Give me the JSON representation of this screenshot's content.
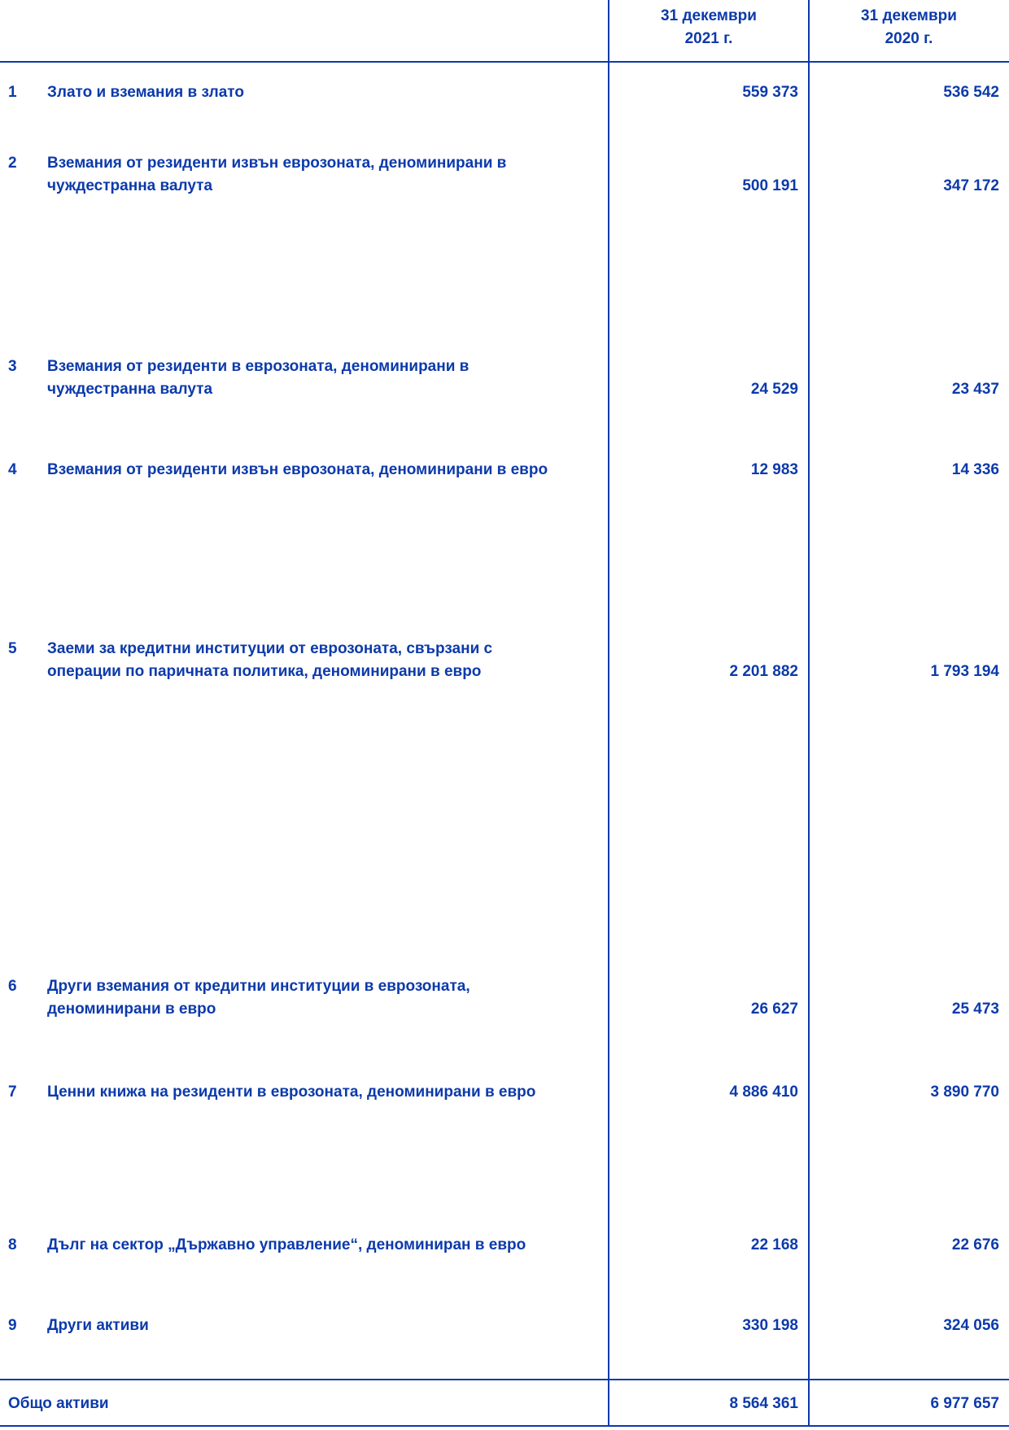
{
  "document": {
    "title": "Balance sheet - assets (Bulgarian)",
    "accent_color": "#0c3aab",
    "columns": [
      {
        "label": "31 декември\n2021 г."
      },
      {
        "label": "31 декември\n2020 г."
      }
    ],
    "rows": [
      {
        "num": "1",
        "label": "Злато и вземания в злато",
        "v2021": "559 373",
        "v2020": "536 542"
      },
      {
        "num": "2",
        "label": "Вземания от резиденти извън еврозоната, деноминирани в\nчуждестранна валута",
        "v2021": "500 191",
        "v2020": "347 172"
      },
      {
        "num": "3",
        "label": "Вземания от резиденти в еврозоната, деноминирани в\nчуждестранна валута",
        "v2021": "24 529",
        "v2020": "23 437"
      },
      {
        "num": "4",
        "label": "Вземания от резиденти извън еврозоната, деноминирани в евро",
        "v2021": "12 983",
        "v2020": "14 336"
      },
      {
        "num": "5",
        "label": "Заеми за кредитни институции от еврозоната, свързани с\nоперации по паричната политика, деноминирани в евро",
        "v2021": "2 201 882",
        "v2020": "1 793 194"
      },
      {
        "num": "6",
        "label": "Други вземания от кредитни институции в еврозоната,\nденоминирани в евро",
        "v2021": "26 627",
        "v2020": "25 473"
      },
      {
        "num": "7",
        "label": "Ценни книжа на резиденти в еврозоната, деноминирани в евро",
        "v2021": "4 886 410",
        "v2020": "3 890 770"
      },
      {
        "num": "8",
        "label": "Дълг на сектор „Държавно управление“, деноминиран в евро",
        "v2021": "22 168",
        "v2020": "22 676"
      },
      {
        "num": "9",
        "label": "Други активи",
        "v2021": "330 198",
        "v2020": "324 056"
      }
    ],
    "total": {
      "label": "Общо активи",
      "v2021": "8 564 361",
      "v2020": "6 977 657"
    }
  }
}
